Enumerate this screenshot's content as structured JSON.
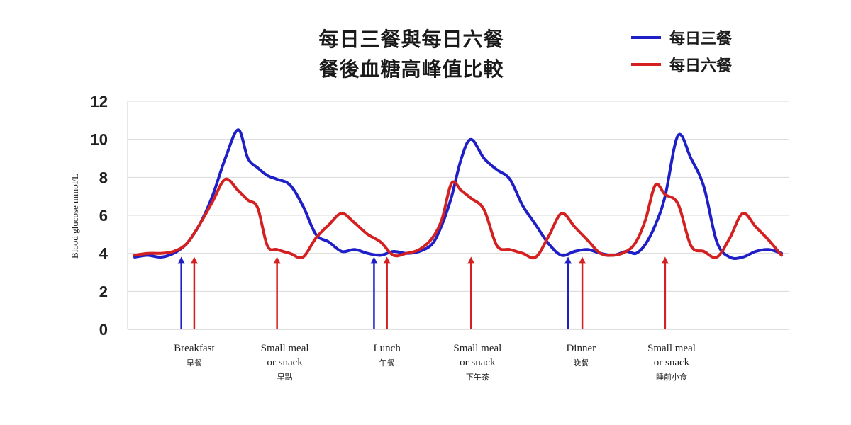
{
  "chart_data": {
    "type": "line",
    "title": [
      "每日三餐與每日六餐",
      "餐後血糖高峰值比較"
    ],
    "xlabel": "",
    "ylabel": "Blood glucose mmol/L",
    "ylim": [
      0,
      12
    ],
    "yticks": [
      0,
      2,
      4,
      6,
      8,
      10,
      12
    ],
    "grid": true,
    "legend_position": "top-right",
    "series": [
      {
        "name": "每日三餐",
        "color": "#1f1fc8",
        "x": [
          0,
          2,
          4,
          6,
          8,
          10,
          12,
          14,
          16,
          17.5,
          19,
          20.5,
          22,
          24,
          26,
          28,
          30,
          32,
          34,
          36,
          38,
          40,
          42,
          44,
          46,
          47.5,
          49,
          50.5,
          52,
          54,
          56,
          58,
          60,
          62,
          64,
          66,
          68,
          70,
          72,
          74,
          76,
          77.5,
          79,
          80.5,
          82,
          84,
          86,
          88,
          90,
          92,
          94,
          96,
          98,
          100
        ],
        "y": [
          3.8,
          3.9,
          3.8,
          4.0,
          4.5,
          5.5,
          7.0,
          9.0,
          10.5,
          9.0,
          8.5,
          8.1,
          7.9,
          7.6,
          6.5,
          5.0,
          4.6,
          4.1,
          4.2,
          4.0,
          3.9,
          4.1,
          4.0,
          4.1,
          4.5,
          5.5,
          7.0,
          9.0,
          10.0,
          9.0,
          8.4,
          7.9,
          6.5,
          5.5,
          4.5,
          3.9,
          4.1,
          4.2,
          4.0,
          3.9,
          4.1,
          4.0,
          4.5,
          5.5,
          7.0,
          10.2,
          9.0,
          7.5,
          4.6,
          3.8,
          3.8,
          4.1,
          4.2,
          4.0
        ]
      },
      {
        "name": "每日六餐",
        "color": "#d42020",
        "x": [
          0,
          2,
          4,
          6,
          8,
          10,
          12,
          14,
          16,
          17.5,
          19,
          20.5,
          22,
          24,
          26,
          28,
          30,
          32,
          34,
          36,
          38,
          40,
          42,
          44,
          46,
          47.5,
          49,
          50.5,
          52,
          54,
          56,
          58,
          60,
          62,
          64,
          66,
          68,
          70,
          72,
          74,
          76,
          77.5,
          79,
          80.5,
          82,
          84,
          86,
          88,
          90,
          92,
          94,
          96,
          98,
          100
        ],
        "y": [
          3.9,
          4.0,
          4.0,
          4.1,
          4.5,
          5.5,
          6.7,
          7.9,
          7.3,
          6.8,
          6.4,
          4.4,
          4.2,
          4.0,
          3.8,
          4.8,
          5.5,
          6.1,
          5.6,
          5.0,
          4.6,
          3.9,
          4.0,
          4.2,
          4.8,
          5.8,
          7.7,
          7.3,
          6.9,
          6.3,
          4.4,
          4.2,
          4.0,
          3.8,
          4.9,
          6.1,
          5.4,
          4.7,
          4.0,
          3.9,
          4.1,
          4.6,
          5.8,
          7.6,
          7.1,
          6.6,
          4.4,
          4.1,
          3.8,
          4.8,
          6.1,
          5.4,
          4.7,
          3.9
        ]
      }
    ],
    "meal_markers": [
      {
        "x": 7.2,
        "color": "#1f1fc8"
      },
      {
        "x": 9.2,
        "color": "#d42020"
      },
      {
        "x": 22.0,
        "color": "#d42020"
      },
      {
        "x": 37.0,
        "color": "#1f1fc8"
      },
      {
        "x": 39.0,
        "color": "#d42020"
      },
      {
        "x": 52.0,
        "color": "#d42020"
      },
      {
        "x": 67.0,
        "color": "#1f1fc8"
      },
      {
        "x": 69.2,
        "color": "#d42020"
      },
      {
        "x": 82.0,
        "color": "#d42020"
      }
    ],
    "meal_labels": [
      {
        "x": 9.2,
        "lines": [
          "Breakfast",
          "早餐"
        ]
      },
      {
        "x": 23.2,
        "lines": [
          "Small meal",
          "or snack",
          "早點"
        ]
      },
      {
        "x": 39.0,
        "lines": [
          "Lunch",
          "午餐"
        ]
      },
      {
        "x": 53.0,
        "lines": [
          "Small meal",
          "or snack",
          "下午茶"
        ]
      },
      {
        "x": 69.0,
        "lines": [
          "Dinner",
          "晚餐"
        ]
      },
      {
        "x": 83.0,
        "lines": [
          "Small meal",
          "or snack",
          "睡前小食"
        ]
      }
    ]
  }
}
